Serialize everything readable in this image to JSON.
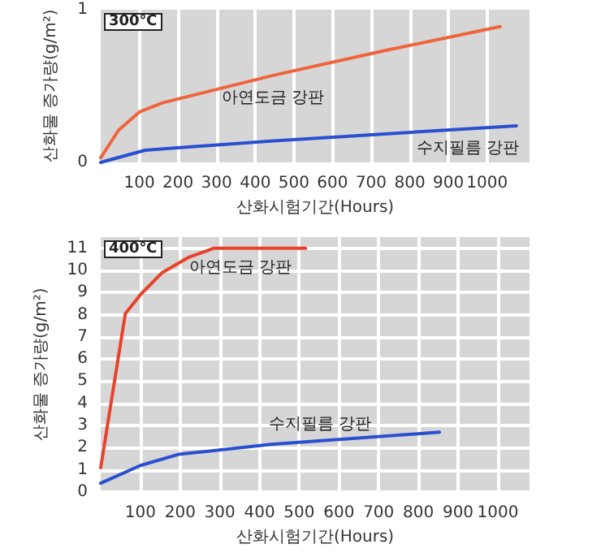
{
  "chart_data": [
    {
      "type": "line",
      "title": "300℃",
      "xlabel": "산화시험기간(Hours)",
      "ylabel": "산화물 증가량(g/m²)",
      "xlim": [
        0,
        1110
      ],
      "xticks": [
        100,
        200,
        300,
        400,
        500,
        600,
        700,
        800,
        900,
        1000
      ],
      "ylim": [
        0,
        1
      ],
      "yticks": [
        0,
        1
      ],
      "grid": "x",
      "marker": "none",
      "line_style": "solid",
      "series": [
        {
          "name": "아연도금 강판",
          "color": "#f0643c",
          "x": [
            0,
            46,
            100,
            160,
            446,
            731,
            1034
          ],
          "values": [
            0.03,
            0.21,
            0.33,
            0.39,
            0.57,
            0.73,
            0.89
          ]
        },
        {
          "name": "수지필름 강판",
          "color": "#2a4fd0",
          "x": [
            0,
            115,
            440,
            1076
          ],
          "values": [
            0,
            0.08,
            0.14,
            0.24
          ]
        }
      ],
      "legend": false
    },
    {
      "type": "line",
      "title": "400℃",
      "xlabel": "산화시험기간(Hours)",
      "ylabel": "산화물 증가량(g/m²)",
      "xlim": [
        0,
        1080
      ],
      "xticks": [
        100,
        200,
        300,
        400,
        500,
        600,
        700,
        800,
        900,
        1000
      ],
      "ylim": [
        0,
        11.5
      ],
      "yticks": [
        0,
        1,
        2,
        3,
        4,
        5,
        6,
        7,
        8,
        9,
        10,
        11
      ],
      "grid": true,
      "marker": "none",
      "line_style": "solid",
      "series": [
        {
          "name": "아연도금 강판",
          "color": "#e8412c",
          "x": [
            0,
            62,
            100,
            155,
            223,
            285,
            516
          ],
          "values": [
            1.1,
            8.05,
            8.9,
            9.9,
            10.6,
            11,
            11
          ]
        },
        {
          "name": "수지필름 강판",
          "color": "#2a4fd0",
          "x": [
            0,
            100,
            196,
            429,
            853
          ],
          "values": [
            0.4,
            1.2,
            1.7,
            2.15,
            2.7
          ]
        }
      ],
      "legend": false
    }
  ]
}
